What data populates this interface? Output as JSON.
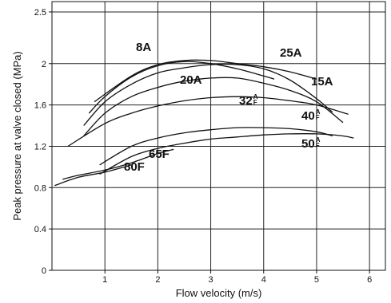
{
  "chart_data": {
    "type": "line",
    "xlabel": "Flow velocity (m/s)",
    "ylabel": "Peak pressure at valve closed (MPa)",
    "xlim": [
      0,
      6.3
    ],
    "ylim": [
      0,
      2.6
    ],
    "x_ticks": [
      1,
      2,
      3,
      4,
      5,
      6
    ],
    "y_ticks": [
      0,
      0.4,
      0.8,
      1.2,
      1.6,
      2,
      2.5
    ],
    "grid": true,
    "series": [
      {
        "name": "8A",
        "label_main": "8A",
        "label_sup": "",
        "x": [
          0.7,
          1.0,
          1.5,
          2.0,
          2.5,
          3.0,
          3.5,
          4.0,
          4.2
        ],
        "y": [
          1.52,
          1.68,
          1.87,
          1.98,
          2.02,
          2.0,
          1.95,
          1.88,
          1.85
        ]
      },
      {
        "name": "25A",
        "label_main": "25A",
        "label_sup": "",
        "x": [
          0.8,
          1.5,
          2.0,
          2.5,
          3.0,
          3.5,
          4.0,
          4.5,
          5.0
        ],
        "y": [
          1.63,
          1.88,
          1.99,
          2.03,
          2.03,
          2.0,
          1.97,
          1.92,
          1.85
        ]
      },
      {
        "name": "15A",
        "label_main": "15A",
        "label_sup": "",
        "x": [
          0.6,
          1.0,
          1.5,
          2.0,
          2.5,
          3.0,
          3.5,
          4.0,
          4.5,
          5.0,
          5.3
        ],
        "y": [
          1.4,
          1.63,
          1.8,
          1.91,
          1.96,
          1.99,
          1.99,
          1.95,
          1.84,
          1.66,
          1.53
        ]
      },
      {
        "name": "20A",
        "label_main": "20A",
        "label_sup": "",
        "x": [
          0.6,
          1.0,
          1.5,
          2.0,
          2.5,
          3.0,
          3.5,
          4.0,
          4.5,
          5.0,
          5.5
        ],
        "y": [
          1.3,
          1.52,
          1.68,
          1.77,
          1.83,
          1.86,
          1.86,
          1.81,
          1.74,
          1.63,
          1.43
        ]
      },
      {
        "name": "32A/32F",
        "label_main": "32",
        "label_sup": "A F",
        "x": [
          0.3,
          1.0,
          1.5,
          2.0,
          2.5,
          3.0,
          3.5,
          4.0,
          4.5,
          5.0,
          5.6
        ],
        "y": [
          1.2,
          1.42,
          1.52,
          1.59,
          1.64,
          1.67,
          1.68,
          1.67,
          1.64,
          1.6,
          1.51
        ]
      },
      {
        "name": "40A/40F",
        "label_main": "40",
        "label_sup": "A F",
        "x": [
          0.9,
          1.5,
          2.0,
          2.5,
          3.0,
          3.5,
          4.0,
          4.5,
          5.0,
          5.3
        ],
        "y": [
          1.02,
          1.2,
          1.28,
          1.33,
          1.36,
          1.38,
          1.38,
          1.37,
          1.34,
          1.3
        ]
      },
      {
        "name": "50A/50F",
        "label_main": "50",
        "label_sup": "A F",
        "x": [
          0.9,
          1.5,
          2.0,
          2.5,
          3.0,
          3.5,
          4.0,
          4.5,
          5.0,
          5.5,
          5.7
        ],
        "y": [
          0.93,
          1.1,
          1.18,
          1.23,
          1.27,
          1.29,
          1.31,
          1.32,
          1.32,
          1.3,
          1.28
        ]
      },
      {
        "name": "65F",
        "label_main": "65F",
        "label_sup": "",
        "x": [
          0.2,
          0.5,
          1.0,
          1.5,
          2.0,
          2.3
        ],
        "y": [
          0.88,
          0.92,
          0.97,
          1.04,
          1.13,
          1.17
        ]
      },
      {
        "name": "80F",
        "label_main": "80F",
        "label_sup": "",
        "x": [
          0.05,
          0.5,
          1.0,
          1.5
        ],
        "y": [
          0.82,
          0.9,
          0.95,
          1.02
        ]
      }
    ]
  },
  "colors": {
    "line": "#111111",
    "grid": "#222222",
    "axis": "#111111",
    "background": "#ffffff"
  }
}
